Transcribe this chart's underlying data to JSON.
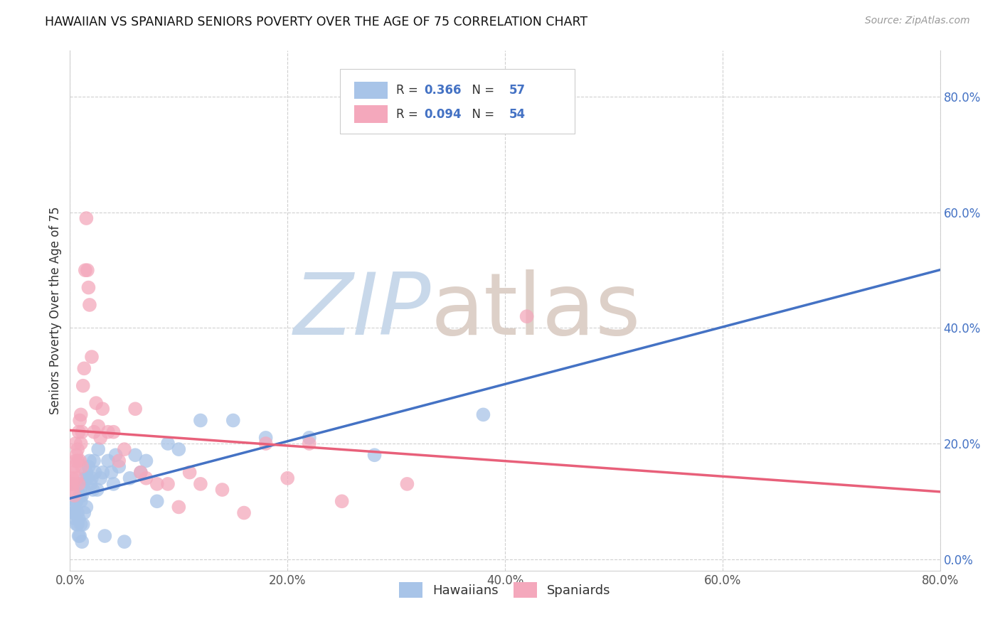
{
  "title": "HAWAIIAN VS SPANIARD SENIORS POVERTY OVER THE AGE OF 75 CORRELATION CHART",
  "source": "Source: ZipAtlas.com",
  "ylabel": "Seniors Poverty Over the Age of 75",
  "hawaiians_R": 0.366,
  "hawaiians_N": 57,
  "spaniards_R": 0.094,
  "spaniards_N": 54,
  "hawaiian_color": "#a8c4e8",
  "spaniard_color": "#f4a8bc",
  "hawaiian_line_color": "#4472c4",
  "spaniard_line_color": "#e8607a",
  "xlim": [
    0.0,
    0.8
  ],
  "ylim": [
    -0.02,
    0.88
  ],
  "right_yticks": [
    0.0,
    0.2,
    0.4,
    0.6,
    0.8
  ],
  "right_yticklabels": [
    "0.0%",
    "20.0%",
    "40.0%",
    "60.0%",
    "80.0%"
  ],
  "xtick_positions": [
    0.0,
    0.2,
    0.4,
    0.6,
    0.8
  ],
  "xtick_labels": [
    "0.0%",
    "20.0%",
    "40.0%",
    "60.0%",
    "80.0%"
  ],
  "hawaiians_x": [
    0.002,
    0.003,
    0.004,
    0.004,
    0.005,
    0.005,
    0.006,
    0.006,
    0.007,
    0.007,
    0.008,
    0.008,
    0.009,
    0.009,
    0.01,
    0.01,
    0.011,
    0.011,
    0.012,
    0.012,
    0.013,
    0.013,
    0.014,
    0.015,
    0.015,
    0.016,
    0.017,
    0.018,
    0.019,
    0.02,
    0.021,
    0.022,
    0.023,
    0.025,
    0.026,
    0.028,
    0.03,
    0.032,
    0.035,
    0.038,
    0.04,
    0.042,
    0.045,
    0.05,
    0.055,
    0.06,
    0.065,
    0.07,
    0.08,
    0.09,
    0.1,
    0.12,
    0.15,
    0.18,
    0.22,
    0.28,
    0.38
  ],
  "hawaiians_y": [
    0.13,
    0.08,
    0.09,
    0.08,
    0.07,
    0.1,
    0.06,
    0.1,
    0.08,
    0.06,
    0.04,
    0.07,
    0.11,
    0.04,
    0.06,
    0.1,
    0.03,
    0.11,
    0.06,
    0.13,
    0.08,
    0.12,
    0.14,
    0.15,
    0.09,
    0.14,
    0.16,
    0.17,
    0.13,
    0.14,
    0.12,
    0.17,
    0.15,
    0.12,
    0.19,
    0.14,
    0.15,
    0.04,
    0.17,
    0.15,
    0.13,
    0.18,
    0.16,
    0.03,
    0.14,
    0.18,
    0.15,
    0.17,
    0.1,
    0.2,
    0.19,
    0.24,
    0.24,
    0.21,
    0.21,
    0.18,
    0.25
  ],
  "spaniards_x": [
    0.001,
    0.002,
    0.002,
    0.003,
    0.003,
    0.004,
    0.004,
    0.005,
    0.005,
    0.006,
    0.006,
    0.007,
    0.007,
    0.008,
    0.008,
    0.009,
    0.009,
    0.01,
    0.01,
    0.011,
    0.011,
    0.012,
    0.013,
    0.014,
    0.015,
    0.016,
    0.017,
    0.018,
    0.02,
    0.022,
    0.024,
    0.026,
    0.028,
    0.03,
    0.035,
    0.04,
    0.045,
    0.05,
    0.06,
    0.065,
    0.07,
    0.08,
    0.09,
    0.1,
    0.11,
    0.12,
    0.14,
    0.16,
    0.18,
    0.2,
    0.22,
    0.25,
    0.31,
    0.42
  ],
  "spaniards_y": [
    0.13,
    0.12,
    0.14,
    0.15,
    0.13,
    0.11,
    0.16,
    0.2,
    0.17,
    0.14,
    0.18,
    0.17,
    0.19,
    0.22,
    0.13,
    0.24,
    0.17,
    0.25,
    0.2,
    0.22,
    0.16,
    0.3,
    0.33,
    0.5,
    0.59,
    0.5,
    0.47,
    0.44,
    0.35,
    0.22,
    0.27,
    0.23,
    0.21,
    0.26,
    0.22,
    0.22,
    0.17,
    0.19,
    0.26,
    0.15,
    0.14,
    0.13,
    0.13,
    0.09,
    0.15,
    0.13,
    0.12,
    0.08,
    0.2,
    0.14,
    0.2,
    0.1,
    0.13,
    0.42
  ]
}
